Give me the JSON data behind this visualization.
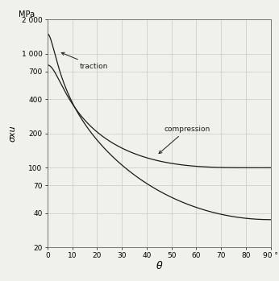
{
  "title": "",
  "xlabel": "θ",
  "ylabel": "σxu",
  "ylabel_top": "MPa",
  "xlim": [
    0,
    90
  ],
  "ylim": [
    20,
    2000
  ],
  "yticks": [
    20,
    40,
    70,
    100,
    200,
    400,
    700,
    1000,
    2000
  ],
  "ytick_labels": [
    "20",
    "40",
    "70",
    "100",
    "200",
    "400",
    "700",
    "1 000",
    "2 000"
  ],
  "xticks": [
    0,
    10,
    20,
    30,
    40,
    50,
    60,
    70,
    80,
    90
  ],
  "traction_label": "traction",
  "compression_label": "compression",
  "background_color": "#f0f0ec",
  "line_color": "#1a1a1a",
  "grid_color": "#c8c8c8",
  "X1t": 1500,
  "X1c": 800,
  "X2t": 35,
  "X2c": 100,
  "S": 70,
  "figsize": [
    3.46,
    3.49
  ],
  "dpi": 100
}
